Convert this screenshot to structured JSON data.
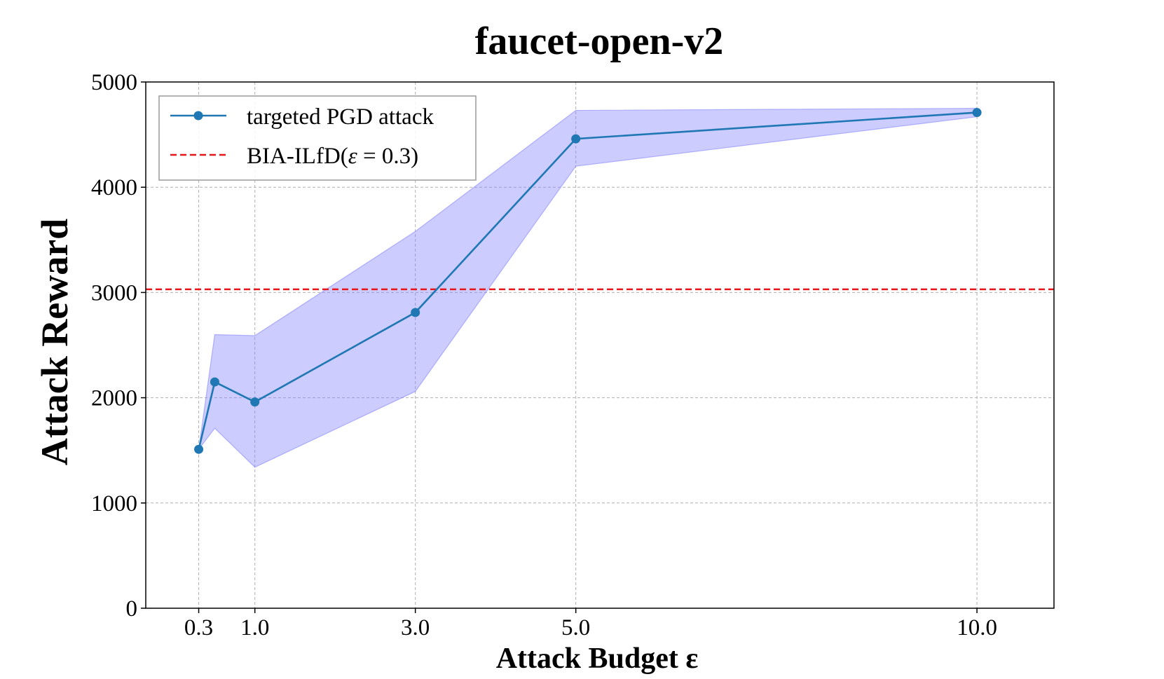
{
  "chart_data": {
    "type": "line",
    "title": "faucet-open-v2",
    "xlabel": "Attack Budget ε",
    "ylabel": "Attack Reward",
    "xlim": [
      -0.66,
      10.66
    ],
    "ylim": [
      0,
      5000
    ],
    "x_ticks": [
      0.3,
      1.0,
      3.0,
      5.0,
      10.0
    ],
    "x_tick_labels": [
      "0.3",
      "1.0",
      "3.0",
      "5.0",
      "10.0"
    ],
    "y_ticks": [
      0,
      1000,
      2000,
      3000,
      4000,
      5000
    ],
    "y_tick_labels": [
      "0",
      "1000",
      "2000",
      "3000",
      "4000",
      "5000"
    ],
    "grid": true,
    "legend_position": "top-left",
    "series": [
      {
        "name": "targeted PGD attack",
        "color": "#1f77b4",
        "marker": "circle",
        "x": [
          0.0,
          0.2,
          0.7,
          2.7,
          4.7,
          9.7
        ],
        "values": [
          1510,
          2150,
          1960,
          2810,
          4460,
          4710
        ],
        "band_upper": [
          1510,
          2600,
          2590,
          3580,
          4730,
          4750
        ],
        "band_lower": [
          1510,
          1710,
          1340,
          2060,
          4200,
          4670
        ],
        "band_color": "#8080ff",
        "band_opacity": 0.4
      }
    ],
    "reference_lines": [
      {
        "name": "BIA-ILfD(ε = 0.3)",
        "legend_prefix": "BIA-ILfD(",
        "legend_epsilon": "ε",
        "legend_equals": " = ",
        "legend_value": "0.3",
        "legend_suffix": ")",
        "y": 3030,
        "color": "#e8161b",
        "style": "dashed"
      }
    ]
  }
}
